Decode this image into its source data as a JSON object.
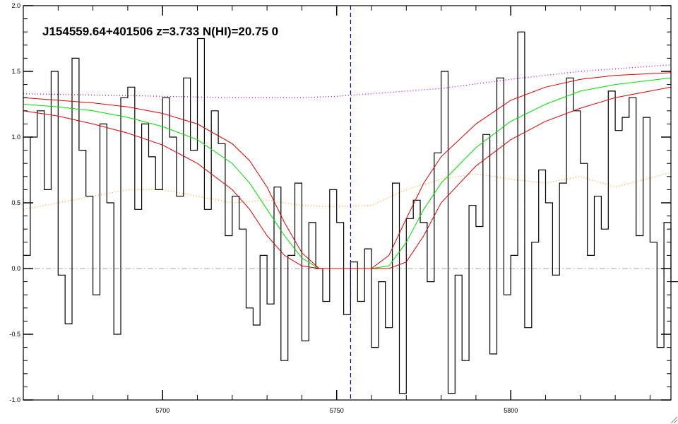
{
  "chart_data": {
    "type": "line",
    "title": "J154559.64+401506 z=3.733 N(HI)=20.75 0",
    "xlabel": "",
    "ylabel": "",
    "xlim": [
      5660,
      5846
    ],
    "ylim": [
      -1.0,
      2.0
    ],
    "x_ticks": [
      5700,
      5750,
      5800
    ],
    "x_tick_labels": [
      "5700",
      "5750",
      "5800"
    ],
    "y_ticks": [
      -1.0,
      -0.5,
      0.0,
      0.5,
      1.0,
      1.5,
      2.0
    ],
    "y_tick_labels": [
      "-1.0",
      "-0.5",
      "0.0",
      "0.5",
      "1.0",
      "1.5",
      "2.0"
    ],
    "grid": false,
    "legend": "none",
    "colors": {
      "flux": "#000000",
      "model": "#00dd00",
      "model_bounds": "#dd0000",
      "continuum": "#aa00ff",
      "error": "#ff9900",
      "zero_line": "#aaaaaa",
      "center_line": "#0000cc"
    },
    "center_wavelength": 5754,
    "zero_level": 0.0,
    "series": [
      {
        "style": "step",
        "x": [
          5660,
          5662,
          5664,
          5666,
          5668,
          5670,
          5672,
          5674,
          5676,
          5678,
          5680,
          5682,
          5684,
          5686,
          5688,
          5690,
          5692,
          5694,
          5696,
          5698,
          5700,
          5702,
          5704,
          5706,
          5708,
          5710,
          5712,
          5714,
          5716,
          5718,
          5720,
          5722,
          5724,
          5726,
          5728,
          5730,
          5732,
          5734,
          5736,
          5738,
          5740,
          5742,
          5744,
          5746,
          5748,
          5750,
          5752,
          5754,
          5756,
          5758,
          5760,
          5762,
          5764,
          5766,
          5768,
          5770,
          5772,
          5774,
          5776,
          5778,
          5780,
          5782,
          5784,
          5786,
          5788,
          5790,
          5792,
          5794,
          5796,
          5798,
          5800,
          5802,
          5804,
          5806,
          5808,
          5810,
          5812,
          5814,
          5816,
          5818,
          5820,
          5822,
          5824,
          5826,
          5828,
          5830,
          5832,
          5834,
          5836,
          5838,
          5840,
          5842,
          5844,
          5846
        ],
        "values": [
          0.1,
          1.0,
          1.2,
          0.6,
          1.5,
          -0.05,
          -0.42,
          1.6,
          0.9,
          0.55,
          -0.2,
          1.1,
          0.5,
          -0.5,
          1.3,
          1.38,
          0.45,
          1.1,
          0.85,
          0.6,
          1.3,
          1.0,
          0.55,
          1.45,
          0.9,
          1.75,
          0.45,
          1.2,
          0.95,
          0.25,
          0.55,
          0.3,
          -0.3,
          -0.43,
          0.1,
          -0.27,
          0.62,
          -0.7,
          0.1,
          0.65,
          -0.55,
          0.35,
          0.0,
          -0.25,
          0.6,
          0.35,
          -0.35,
          0.05,
          -0.25,
          0.15,
          -0.6,
          -0.1,
          -0.45,
          0.65,
          -0.95,
          0.38,
          0.52,
          0.35,
          -0.1,
          0.88,
          1.5,
          -0.95,
          -0.05,
          -0.7,
          0.48,
          0.32,
          1.02,
          -0.65,
          1.45,
          -0.2,
          0.1,
          1.8,
          -0.45,
          0.2,
          0.75,
          0.5,
          -0.05,
          0.65,
          1.45,
          1.2,
          0.8,
          0.1,
          0.55,
          0.3,
          1.35,
          1.05,
          1.15,
          1.3,
          0.25,
          1.15,
          0.2,
          -0.6,
          0.35,
          -0.1
        ]
      },
      {
        "style": "line",
        "x": [
          5660,
          5670,
          5680,
          5690,
          5700,
          5710,
          5720,
          5725,
          5730,
          5735,
          5740,
          5745,
          5750,
          5755,
          5760,
          5765,
          5770,
          5775,
          5780,
          5790,
          5800,
          5810,
          5820,
          5830,
          5846
        ],
        "values": [
          1.25,
          1.23,
          1.2,
          1.15,
          1.08,
          0.98,
          0.8,
          0.65,
          0.45,
          0.25,
          0.08,
          0.0,
          0.0,
          0.0,
          0.0,
          0.02,
          0.2,
          0.45,
          0.65,
          0.92,
          1.12,
          1.25,
          1.35,
          1.4,
          1.45
        ]
      },
      {
        "style": "line",
        "x": [
          5660,
          5670,
          5680,
          5690,
          5700,
          5710,
          5720,
          5725,
          5730,
          5735,
          5740,
          5745,
          5750,
          5755,
          5760,
          5765,
          5770,
          5775,
          5780,
          5790,
          5800,
          5810,
          5820,
          5830,
          5846
        ],
        "values": [
          1.3,
          1.28,
          1.26,
          1.23,
          1.18,
          1.1,
          0.95,
          0.82,
          0.62,
          0.35,
          0.12,
          0.0,
          0.0,
          0.0,
          0.0,
          0.1,
          0.38,
          0.65,
          0.85,
          1.1,
          1.28,
          1.38,
          1.44,
          1.47,
          1.49
        ]
      },
      {
        "style": "line",
        "x": [
          5660,
          5670,
          5680,
          5690,
          5700,
          5710,
          5720,
          5725,
          5730,
          5735,
          5740,
          5745,
          5750,
          5755,
          5760,
          5765,
          5770,
          5775,
          5780,
          5790,
          5800,
          5810,
          5820,
          5830,
          5846
        ],
        "values": [
          1.2,
          1.16,
          1.1,
          1.03,
          0.94,
          0.8,
          0.6,
          0.45,
          0.25,
          0.1,
          0.02,
          0.0,
          0.0,
          0.0,
          0.0,
          0.0,
          0.05,
          0.25,
          0.5,
          0.78,
          0.98,
          1.12,
          1.22,
          1.3,
          1.38
        ]
      },
      {
        "style": "dotted",
        "x": [
          5660,
          5680,
          5700,
          5720,
          5740,
          5750,
          5760,
          5780,
          5800,
          5820,
          5846
        ],
        "values": [
          1.33,
          1.32,
          1.31,
          1.3,
          1.3,
          1.31,
          1.33,
          1.37,
          1.44,
          1.5,
          1.55
        ]
      },
      {
        "style": "dotted",
        "x": [
          5660,
          5670,
          5680,
          5690,
          5700,
          5710,
          5720,
          5730,
          5740,
          5750,
          5760,
          5770,
          5780,
          5790,
          5800,
          5810,
          5820,
          5830,
          5846
        ],
        "values": [
          0.45,
          0.5,
          0.55,
          0.6,
          0.6,
          0.55,
          0.5,
          0.52,
          0.48,
          0.47,
          0.48,
          0.6,
          0.68,
          0.72,
          0.68,
          0.65,
          0.7,
          0.62,
          0.73
        ]
      }
    ]
  }
}
